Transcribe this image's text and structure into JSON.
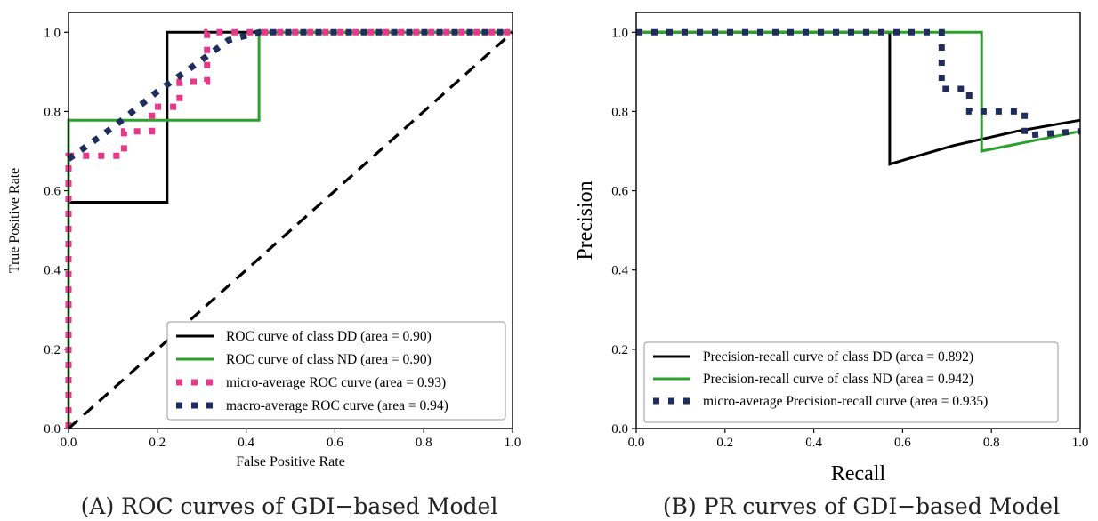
{
  "captions": {
    "left": "(A) ROC curves of GDI−based Model",
    "right": "(B) PR curves of GDI−based Model"
  },
  "chart_data": [
    {
      "type": "line",
      "title": "",
      "xlabel": "False Positive Rate",
      "ylabel": "True Positive Rate",
      "xlim": [
        0,
        1
      ],
      "ylim": [
        0,
        1.05
      ],
      "xticks": [
        "0.0",
        "0.2",
        "0.4",
        "0.6",
        "0.8",
        "1.0"
      ],
      "yticks": [
        "0.0",
        "0.2",
        "0.4",
        "0.6",
        "0.8",
        "1.0"
      ],
      "grid": false,
      "legend_position": "lower-right",
      "series": [
        {
          "name": "ROC curve of class DD (area = 0.90)",
          "color": "#000000",
          "style": "solid",
          "points": [
            [
              0,
              0
            ],
            [
              0,
              0.571
            ],
            [
              0.222,
              0.571
            ],
            [
              0.222,
              1.0
            ],
            [
              1.0,
              1.0
            ]
          ]
        },
        {
          "name": "ROC curve of class ND (area = 0.90)",
          "color": "#2ca02c",
          "style": "solid",
          "points": [
            [
              0,
              0
            ],
            [
              0,
              0.778
            ],
            [
              0.429,
              0.778
            ],
            [
              0.429,
              1.0
            ],
            [
              1.0,
              1.0
            ]
          ]
        },
        {
          "name": "micro-average ROC curve (area = 0.93)",
          "color": "#e8388a",
          "style": "dotted",
          "points": [
            [
              0,
              0
            ],
            [
              0,
              0.688
            ],
            [
              0.125,
              0.688
            ],
            [
              0.125,
              0.75
            ],
            [
              0.188,
              0.75
            ],
            [
              0.188,
              0.812
            ],
            [
              0.25,
              0.812
            ],
            [
              0.25,
              0.875
            ],
            [
              0.312,
              0.875
            ],
            [
              0.312,
              1.0
            ],
            [
              1.0,
              1.0
            ]
          ]
        },
        {
          "name": "macro-average ROC curve (area = 0.94)",
          "color": "#1f2d5c",
          "style": "dotted",
          "points": [
            [
              0,
              0.68
            ],
            [
              0.1,
              0.76
            ],
            [
              0.2,
              0.85
            ],
            [
              0.3,
              0.93
            ],
            [
              0.36,
              0.98
            ],
            [
              0.43,
              1.0
            ],
            [
              1.0,
              1.0
            ]
          ]
        },
        {
          "name": "",
          "color": "#000000",
          "style": "dashed",
          "points": [
            [
              0,
              0
            ],
            [
              1,
              1
            ]
          ]
        }
      ]
    },
    {
      "type": "line",
      "title": "",
      "xlabel": "Recall",
      "ylabel": "Precision",
      "xlim": [
        0,
        1
      ],
      "ylim": [
        0,
        1.05
      ],
      "xticks": [
        "0.0",
        "0.2",
        "0.4",
        "0.6",
        "0.8",
        "1.0"
      ],
      "yticks": [
        "0.0",
        "0.2",
        "0.4",
        "0.6",
        "0.8",
        "1.0"
      ],
      "grid": false,
      "legend_position": "lower-left",
      "series": [
        {
          "name": "Precision-recall curve of class DD (area = 0.892)",
          "color": "#000000",
          "style": "solid",
          "points": [
            [
              0,
              1.0
            ],
            [
              0.571,
              1.0
            ],
            [
              0.571,
              0.667
            ],
            [
              0.714,
              0.714
            ],
            [
              0.857,
              0.75
            ],
            [
              1.0,
              0.778
            ]
          ]
        },
        {
          "name": "Precision-recall curve of class ND (area = 0.942)",
          "color": "#2ca02c",
          "style": "solid",
          "points": [
            [
              0,
              1.0
            ],
            [
              0.778,
              1.0
            ],
            [
              0.778,
              0.7
            ],
            [
              1.0,
              0.75
            ]
          ]
        },
        {
          "name": "micro-average Precision-recall curve (area = 0.935)",
          "color": "#1f2d5c",
          "style": "dotted",
          "points": [
            [
              0,
              1.0
            ],
            [
              0.688,
              1.0
            ],
            [
              0.688,
              0.857
            ],
            [
              0.75,
              0.857
            ],
            [
              0.75,
              0.8
            ],
            [
              0.875,
              0.8
            ],
            [
              0.875,
              0.74
            ],
            [
              1.0,
              0.75
            ]
          ]
        }
      ]
    }
  ]
}
